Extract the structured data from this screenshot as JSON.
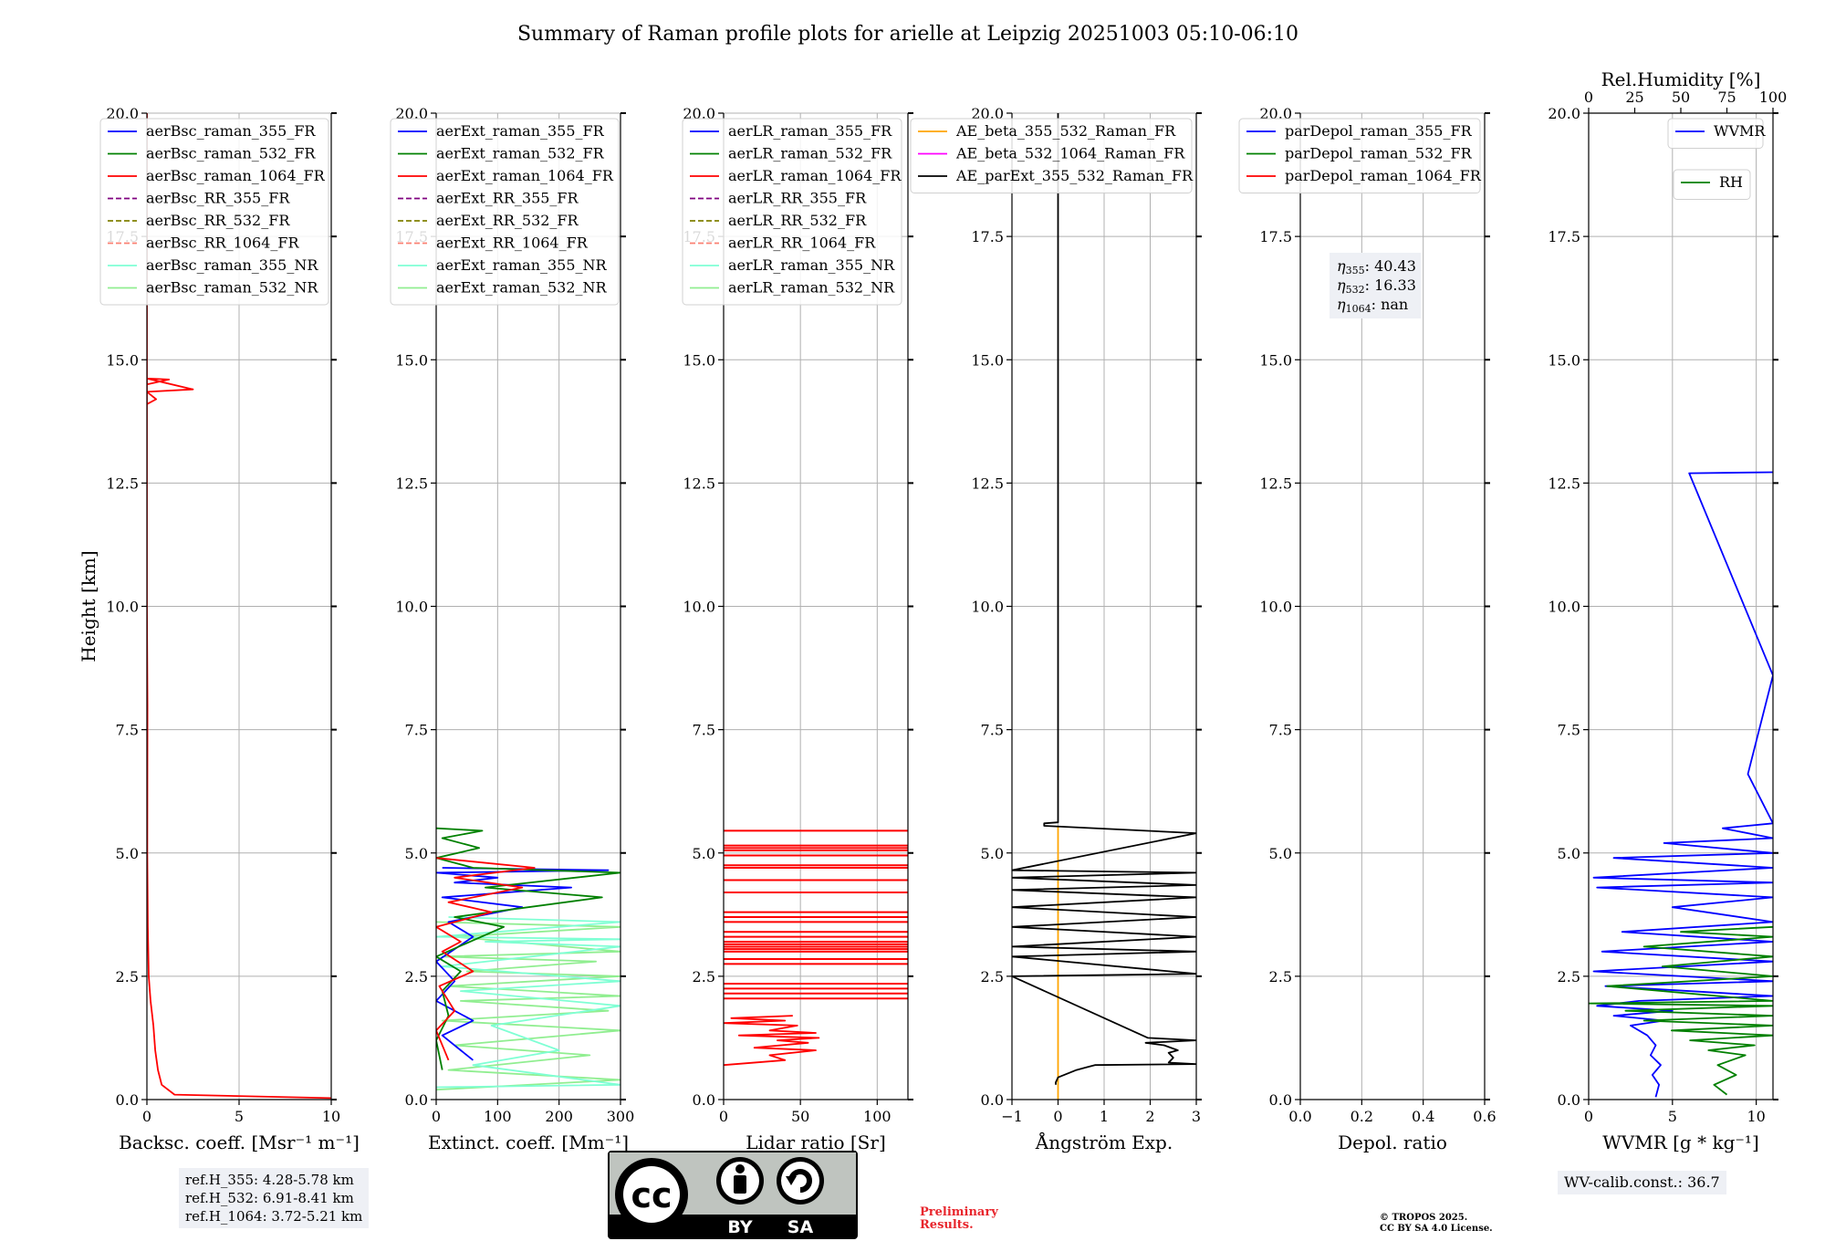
{
  "title": "Summary of Raman profile plots for arielle at Leipzig 20251003 05:10-06:10",
  "chart_data": [
    {
      "type": "line",
      "id": "bsc",
      "xlabel": "Backsc. coeff. [Msr⁻¹ m⁻¹]",
      "ylabel": "Height [km]",
      "xlim": [
        0,
        10
      ],
      "xticks": [
        0,
        5,
        10
      ],
      "xticklabels": [
        "0",
        "5",
        "10"
      ],
      "ylim": [
        0,
        20
      ],
      "yticks": [
        0,
        2.5,
        5,
        7.5,
        10,
        12.5,
        15,
        17.5,
        20
      ],
      "yticklabels": [
        "0.0",
        "2.5",
        "5.0",
        "7.5",
        "10.0",
        "12.5",
        "15.0",
        "17.5",
        "20.0"
      ],
      "legend": [
        {
          "name": "aerBsc_raman_355_FR",
          "color": "#0000ff",
          "style": "solid"
        },
        {
          "name": "aerBsc_raman_532_FR",
          "color": "#008000",
          "style": "solid"
        },
        {
          "name": "aerBsc_raman_1064_FR",
          "color": "#ff0000",
          "style": "solid"
        },
        {
          "name": "aerBsc_RR_355_FR",
          "color": "#800080",
          "style": "dashed"
        },
        {
          "name": "aerBsc_RR_532_FR",
          "color": "#808000",
          "style": "dashed"
        },
        {
          "name": "aerBsc_RR_1064_FR",
          "color": "#fa8072",
          "style": "dashed"
        },
        {
          "name": "aerBsc_raman_355_NR",
          "color": "#7fffd4",
          "style": "solid"
        },
        {
          "name": "aerBsc_raman_532_NR",
          "color": "#90ee90",
          "style": "solid"
        }
      ],
      "series": [
        {
          "name": "aerBsc_raman_1064_FR",
          "color": "#ff0000",
          "x": [
            10,
            1.5,
            0.8,
            0.6,
            0.45,
            0.35,
            0.2,
            0.1,
            0.05,
            0.02,
            0.03,
            0.0,
            0.0,
            0.0,
            0.0,
            0.0,
            1.2,
            0.0,
            2.5,
            0.0,
            0.5,
            0.0,
            0.0,
            0.0
          ],
          "y": [
            0.03,
            0.1,
            0.3,
            0.6,
            1.0,
            1.5,
            2.0,
            2.5,
            3.5,
            5.0,
            8.0,
            10.0,
            12.0,
            14.0,
            14.3,
            14.5,
            14.6,
            14.62,
            14.4,
            14.35,
            14.2,
            14.1,
            16.0,
            20.0
          ]
        }
      ]
    },
    {
      "type": "line",
      "id": "ext",
      "xlabel": "Extinct. coeff. [Mm⁻¹]",
      "xlim": [
        0,
        300
      ],
      "xticks": [
        0,
        100,
        200,
        300
      ],
      "xticklabels": [
        "0",
        "100",
        "200",
        "300"
      ],
      "ylim": [
        0,
        20
      ],
      "yticks": [
        0,
        2.5,
        5,
        7.5,
        10,
        12.5,
        15,
        17.5,
        20
      ],
      "yticklabels": [
        "0.0",
        "2.5",
        "5.0",
        "7.5",
        "10.0",
        "12.5",
        "15.0",
        "17.5",
        "20.0"
      ],
      "legend": [
        {
          "name": "aerExt_raman_355_FR",
          "color": "#0000ff",
          "style": "solid"
        },
        {
          "name": "aerExt_raman_532_FR",
          "color": "#008000",
          "style": "solid"
        },
        {
          "name": "aerExt_raman_1064_FR",
          "color": "#ff0000",
          "style": "solid"
        },
        {
          "name": "aerExt_RR_355_FR",
          "color": "#800080",
          "style": "dashed"
        },
        {
          "name": "aerExt_RR_532_FR",
          "color": "#808000",
          "style": "dashed"
        },
        {
          "name": "aerExt_RR_1064_FR",
          "color": "#fa8072",
          "style": "dashed"
        },
        {
          "name": "aerExt_raman_355_NR",
          "color": "#7fffd4",
          "style": "solid"
        },
        {
          "name": "aerExt_raman_532_NR",
          "color": "#90ee90",
          "style": "solid"
        }
      ],
      "series": [
        {
          "name": "aerExt_raman_532_NR",
          "color": "#90ee90",
          "x": [
            0,
            300,
            20,
            250,
            30,
            300,
            10,
            280,
            40,
            300,
            20,
            300,
            50,
            260,
            10,
            300,
            30,
            300,
            0
          ],
          "y": [
            0.2,
            0.4,
            0.6,
            0.9,
            1.1,
            1.4,
            1.6,
            1.8,
            2.0,
            2.1,
            2.3,
            2.5,
            2.6,
            2.8,
            2.9,
            3.0,
            3.3,
            3.5,
            3.6
          ]
        },
        {
          "name": "aerExt_raman_355_NR",
          "color": "#7fffd4",
          "x": [
            0,
            300,
            60,
            200,
            90,
            300,
            40,
            300,
            10,
            300,
            80,
            300,
            0,
            300,
            20
          ],
          "y": [
            0.25,
            0.3,
            0.7,
            1.0,
            1.5,
            1.9,
            2.2,
            2.4,
            2.7,
            3.1,
            3.2,
            3.25,
            3.3,
            3.6,
            3.7
          ]
        },
        {
          "name": "aerExt_raman_355_FR",
          "color": "#0000ff",
          "x": [
            60,
            40,
            10,
            60,
            0,
            30,
            0,
            60,
            20,
            140,
            10,
            220,
            30,
            100,
            0,
            280,
            10
          ],
          "y": [
            0.8,
            1.0,
            1.3,
            1.6,
            2.0,
            2.4,
            2.8,
            3.3,
            3.6,
            3.9,
            4.1,
            4.3,
            4.4,
            4.5,
            4.6,
            4.65,
            4.7
          ]
        },
        {
          "name": "aerExt_raman_532_FR",
          "color": "#008000",
          "x": [
            10,
            0,
            20,
            10,
            40,
            0,
            110,
            30,
            270,
            80,
            300,
            60,
            0,
            70,
            10,
            75,
            0
          ],
          "y": [
            0.6,
            1.2,
            1.7,
            2.2,
            2.6,
            2.9,
            3.5,
            3.7,
            4.1,
            4.3,
            4.6,
            4.7,
            4.9,
            5.1,
            5.3,
            5.45,
            5.5
          ]
        },
        {
          "name": "aerExt_raman_1064_FR",
          "color": "#ff0000",
          "x": [
            20,
            0,
            30,
            5,
            60,
            10,
            40,
            0,
            90,
            20,
            140,
            30,
            160,
            0
          ],
          "y": [
            0.8,
            1.4,
            1.8,
            2.3,
            2.6,
            3.0,
            3.2,
            3.5,
            3.8,
            4.0,
            4.3,
            4.5,
            4.7,
            4.9
          ]
        }
      ]
    },
    {
      "type": "line",
      "id": "lr",
      "xlabel": "Lidar ratio [Sr]",
      "xlim": [
        0,
        120
      ],
      "xticks": [
        0,
        50,
        100
      ],
      "xticklabels": [
        "0",
        "50",
        "100"
      ],
      "ylim": [
        0,
        20
      ],
      "yticks": [
        0,
        2.5,
        5,
        7.5,
        10,
        12.5,
        15,
        17.5,
        20
      ],
      "yticklabels": [
        "0.0",
        "2.5",
        "5.0",
        "7.5",
        "10.0",
        "12.5",
        "15.0",
        "17.5",
        "20.0"
      ],
      "legend": [
        {
          "name": "aerLR_raman_355_FR",
          "color": "#0000ff",
          "style": "solid"
        },
        {
          "name": "aerLR_raman_532_FR",
          "color": "#008000",
          "style": "solid"
        },
        {
          "name": "aerLR_raman_1064_FR",
          "color": "#ff0000",
          "style": "solid"
        },
        {
          "name": "aerLR_RR_355_FR",
          "color": "#800080",
          "style": "dashed"
        },
        {
          "name": "aerLR_RR_532_FR",
          "color": "#808000",
          "style": "dashed"
        },
        {
          "name": "aerLR_RR_1064_FR",
          "color": "#fa8072",
          "style": "dashed"
        },
        {
          "name": "aerLR_raman_355_NR",
          "color": "#7fffd4",
          "style": "solid"
        },
        {
          "name": "aerLR_raman_532_NR",
          "color": "#90ee90",
          "style": "solid"
        }
      ],
      "series": [
        {
          "name": "aerLR_raman_1064_FR",
          "color": "#ff0000",
          "x": [
            0,
            40,
            30,
            60,
            20,
            55,
            35,
            62,
            10,
            60,
            30,
            48,
            0,
            40,
            5,
            45
          ],
          "y": [
            0.7,
            0.8,
            0.9,
            1.0,
            1.05,
            1.15,
            1.2,
            1.25,
            1.3,
            1.35,
            1.4,
            1.5,
            1.55,
            1.6,
            1.65,
            1.7
          ]
        },
        {
          "name": "aerLR_raman_1064_FR_layers",
          "color": "#ff0000",
          "kind": "hlines",
          "x0": 0,
          "x1": 120,
          "y": [
            2.05,
            2.15,
            2.25,
            2.35,
            2.75,
            2.85,
            3.0,
            3.05,
            3.1,
            3.15,
            3.2,
            3.3,
            3.4,
            3.6,
            3.7,
            3.8,
            4.2,
            4.45,
            4.7,
            4.75,
            4.95,
            5.05,
            5.1,
            5.15,
            5.45
          ]
        }
      ]
    },
    {
      "type": "line",
      "id": "ae",
      "xlabel": "Ångström Exp.",
      "xlim": [
        -1,
        3
      ],
      "xticks": [
        -1,
        0,
        1,
        2,
        3
      ],
      "xticklabels": [
        "−1",
        "0",
        "1",
        "2",
        "3"
      ],
      "ylim": [
        0,
        20
      ],
      "yticks": [
        0,
        2.5,
        5,
        7.5,
        10,
        12.5,
        15,
        17.5,
        20
      ],
      "yticklabels": [
        "0.0",
        "2.5",
        "5.0",
        "7.5",
        "10.0",
        "12.5",
        "15.0",
        "17.5",
        "20.0"
      ],
      "legend": [
        {
          "name": "AE_beta_355_532_Raman_FR",
          "color": "#ffa500",
          "style": "solid"
        },
        {
          "name": "AE_beta_532_1064_Raman_FR",
          "color": "#ff00ff",
          "style": "solid"
        },
        {
          "name": "AE_parExt_355_532_Raman_FR",
          "color": "#000000",
          "style": "solid"
        }
      ],
      "series": [
        {
          "name": "AE_beta_355_532_Raman_FR",
          "color": "#ffa500",
          "x": [
            0,
            0
          ],
          "y": [
            0.0,
            5.55
          ]
        },
        {
          "name": "AE_parExt_355_532_Raman_FR",
          "color": "#000000",
          "x": [
            -0.05,
            -0.05,
            0.0,
            0.4,
            0.6,
            0.8,
            3.0,
            2.4,
            2.5,
            2.4,
            2.6,
            2.3,
            1.9,
            3.0,
            1.95,
            -1.0,
            3.0,
            -1.0,
            3.0,
            -1.0,
            3.0,
            -1.0,
            3.0,
            -1.0,
            3.0,
            -1.0,
            3.0,
            -1.0,
            3.0,
            -1.0,
            3.0,
            -0.3,
            -0.3,
            0.0,
            0.0
          ],
          "y": [
            0.3,
            0.35,
            0.45,
            0.6,
            0.65,
            0.7,
            0.72,
            0.75,
            0.85,
            0.95,
            1.0,
            1.1,
            1.15,
            1.2,
            1.25,
            2.5,
            2.55,
            2.9,
            3.0,
            3.1,
            3.3,
            3.5,
            3.7,
            3.9,
            4.1,
            4.25,
            4.35,
            4.5,
            4.6,
            4.65,
            5.4,
            5.55,
            5.6,
            5.62,
            20.0
          ]
        }
      ]
    },
    {
      "type": "line",
      "id": "depol",
      "xlabel": "Depol. ratio",
      "xlim": [
        0,
        0.6
      ],
      "xticks": [
        0,
        0.2,
        0.4,
        0.6
      ],
      "xticklabels": [
        "0.0",
        "0.2",
        "0.4",
        "0.6"
      ],
      "ylim": [
        0,
        20
      ],
      "yticks": [
        0,
        2.5,
        5,
        7.5,
        10,
        12.5,
        15,
        17.5,
        20
      ],
      "yticklabels": [
        "0.0",
        "2.5",
        "5.0",
        "7.5",
        "10.0",
        "12.5",
        "15.0",
        "17.5",
        "20.0"
      ],
      "legend": [
        {
          "name": "parDepol_raman_355_FR",
          "color": "#0000ff",
          "style": "solid"
        },
        {
          "name": "parDepol_raman_532_FR",
          "color": "#008000",
          "style": "solid"
        },
        {
          "name": "parDepol_raman_1064_FR",
          "color": "#ff0000",
          "style": "solid"
        }
      ],
      "annotation": [
        {
          "label": "η",
          "sub": "355",
          "value": ": 40.43"
        },
        {
          "label": "η",
          "sub": "532",
          "value": ": 16.33"
        },
        {
          "label": "η",
          "sub": "1064",
          "value": ": nan"
        }
      ],
      "series": []
    },
    {
      "type": "line",
      "id": "wvmr",
      "xlabel": "WVMR [g * kg⁻¹]",
      "xlim": [
        0,
        11
      ],
      "xticks": [
        0,
        5,
        10
      ],
      "xticklabels": [
        "0",
        "5",
        "10"
      ],
      "ylim": [
        0,
        20
      ],
      "yticks": [
        0,
        2.5,
        5,
        7.5,
        10,
        12.5,
        15,
        17.5,
        20
      ],
      "yticklabels": [
        "0.0",
        "2.5",
        "5.0",
        "7.5",
        "10.0",
        "12.5",
        "15.0",
        "17.5",
        "20.0"
      ],
      "top_axis": {
        "label": "Rel.Humidity [%]",
        "xlim": [
          0,
          100
        ],
        "ticks": [
          0,
          25,
          50,
          75,
          100
        ],
        "ticklabels": [
          "0",
          "25",
          "50",
          "75",
          "100"
        ]
      },
      "legend_wvmr": {
        "name": "WVMR",
        "color": "#0000ff"
      },
      "legend_rh": {
        "name": "RH",
        "color": "#008000"
      },
      "series": [
        {
          "name": "WVMR",
          "color": "#0000ff",
          "x": [
            4.0,
            4.2,
            3.8,
            4.3,
            3.7,
            4.0,
            3.5,
            2.5,
            4.5,
            1.5,
            5.0,
            0.5,
            3.0,
            11,
            1.0,
            11,
            0.3,
            11,
            0.8,
            11,
            2.0,
            11,
            5.0,
            11,
            0.5,
            11,
            0.3,
            11,
            1.5,
            11,
            4.5,
            11,
            8.0,
            11,
            9.5,
            11,
            6.0,
            11
          ],
          "y": [
            0.05,
            0.3,
            0.5,
            0.7,
            0.9,
            1.1,
            1.3,
            1.5,
            1.6,
            1.7,
            1.8,
            1.9,
            2.0,
            2.1,
            2.3,
            2.4,
            2.6,
            2.8,
            3.0,
            3.2,
            3.4,
            3.6,
            3.9,
            4.1,
            4.3,
            4.4,
            4.5,
            4.7,
            4.9,
            5.0,
            5.2,
            5.3,
            5.5,
            5.6,
            6.6,
            8.6,
            12.7,
            12.72
          ]
        },
        {
          "name": "RH",
          "color": "#008000",
          "axis": "top",
          "x": [
            75,
            68,
            80,
            70,
            85,
            65,
            90,
            55,
            100,
            45,
            100,
            30,
            100,
            20,
            100,
            0,
            100,
            10,
            100,
            40,
            100,
            30,
            100,
            50,
            100
          ],
          "y": [
            0.1,
            0.3,
            0.5,
            0.7,
            0.9,
            1.0,
            1.1,
            1.2,
            1.3,
            1.4,
            1.5,
            1.6,
            1.7,
            1.8,
            1.9,
            1.95,
            2.0,
            2.3,
            2.5,
            2.7,
            2.9,
            3.1,
            3.3,
            3.4,
            3.5
          ]
        }
      ]
    }
  ],
  "footer": {
    "ref_lines": [
      "ref.H_355: 4.28-5.78 km",
      "ref.H_532: 6.91-8.41 km",
      "ref.H_1064: 3.72-5.21 km"
    ],
    "license_cc": "cc",
    "license_by": "BY",
    "license_sa": "SA",
    "preliminary_1": "Preliminary",
    "preliminary_2": "Results.",
    "copyright_1": "© TROPOS 2025.",
    "copyright_2": "CC BY SA 4.0 License.",
    "wv_calib": "WV-calib.const.: 36.7"
  }
}
